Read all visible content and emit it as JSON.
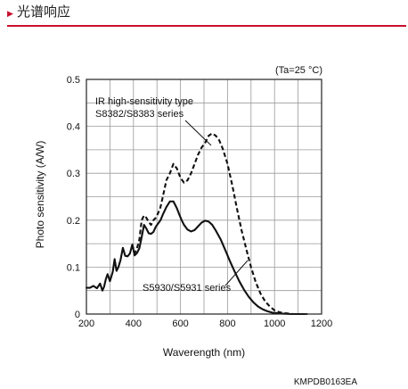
{
  "header": {
    "title": "光谱响应"
  },
  "chart_data": {
    "type": "line",
    "xlabel": "Waverength (nm)",
    "ylabel": "Photo sensitivity (A/W)",
    "xlim": [
      200,
      1200
    ],
    "ylim": [
      0,
      0.5
    ],
    "xticks": [
      200,
      400,
      600,
      800,
      1000,
      1200
    ],
    "yticks": [
      0,
      0.1,
      0.2,
      0.3,
      0.4,
      0.5
    ],
    "grid": true,
    "condition": "(Ta=25 °C)",
    "code": "KMPDB0163EA",
    "series": [
      {
        "name": "S5930/S5931 series",
        "line_style": "solid",
        "color": "#111111",
        "x": [
          200,
          215,
          230,
          245,
          258,
          268,
          275,
          283,
          290,
          300,
          312,
          320,
          328,
          336,
          345,
          355,
          365,
          375,
          385,
          395,
          405,
          415,
          425,
          435,
          445,
          455,
          465,
          475,
          485,
          495,
          505,
          515,
          525,
          540,
          555,
          570,
          585,
          595,
          605,
          615,
          630,
          645,
          660,
          675,
          690,
          705,
          720,
          735,
          750,
          770,
          790,
          810,
          830,
          850,
          870,
          890,
          910,
          930,
          950,
          970,
          990,
          1010,
          1030,
          1050,
          1070,
          1090,
          1110,
          1130
        ],
        "y": [
          0.056,
          0.056,
          0.06,
          0.055,
          0.065,
          0.05,
          0.058,
          0.075,
          0.085,
          0.07,
          0.09,
          0.117,
          0.092,
          0.1,
          0.115,
          0.141,
          0.124,
          0.123,
          0.129,
          0.148,
          0.125,
          0.13,
          0.14,
          0.164,
          0.19,
          0.182,
          0.172,
          0.171,
          0.175,
          0.186,
          0.193,
          0.2,
          0.212,
          0.228,
          0.24,
          0.24,
          0.225,
          0.212,
          0.2,
          0.19,
          0.18,
          0.176,
          0.179,
          0.187,
          0.195,
          0.199,
          0.197,
          0.19,
          0.178,
          0.16,
          0.137,
          0.113,
          0.091,
          0.07,
          0.052,
          0.037,
          0.025,
          0.016,
          0.01,
          0.006,
          0.003,
          0.002,
          0.001,
          0.0005,
          0,
          0,
          0,
          0
        ]
      },
      {
        "name": "IR high-sensitivity type S8382/S8383 series",
        "line_style": "dashed",
        "color": "#111111",
        "x": [
          395,
          405,
          415,
          425,
          435,
          445,
          455,
          465,
          475,
          485,
          495,
          505,
          515,
          525,
          540,
          555,
          570,
          585,
          600,
          615,
          630,
          645,
          660,
          675,
          690,
          705,
          720,
          735,
          750,
          765,
          780,
          800,
          820,
          840,
          860,
          880,
          900,
          920,
          940,
          960,
          980,
          1000,
          1020,
          1040,
          1060,
          1080,
          1100,
          1120,
          1140
        ],
        "y": [
          0.148,
          0.13,
          0.14,
          0.158,
          0.2,
          0.21,
          0.205,
          0.196,
          0.19,
          0.2,
          0.205,
          0.215,
          0.228,
          0.25,
          0.285,
          0.3,
          0.32,
          0.31,
          0.29,
          0.28,
          0.285,
          0.3,
          0.32,
          0.34,
          0.355,
          0.365,
          0.38,
          0.385,
          0.38,
          0.37,
          0.352,
          0.32,
          0.275,
          0.225,
          0.178,
          0.138,
          0.1,
          0.068,
          0.044,
          0.027,
          0.016,
          0.008,
          0.004,
          0.002,
          0.001,
          0,
          0,
          0,
          0
        ]
      }
    ]
  }
}
